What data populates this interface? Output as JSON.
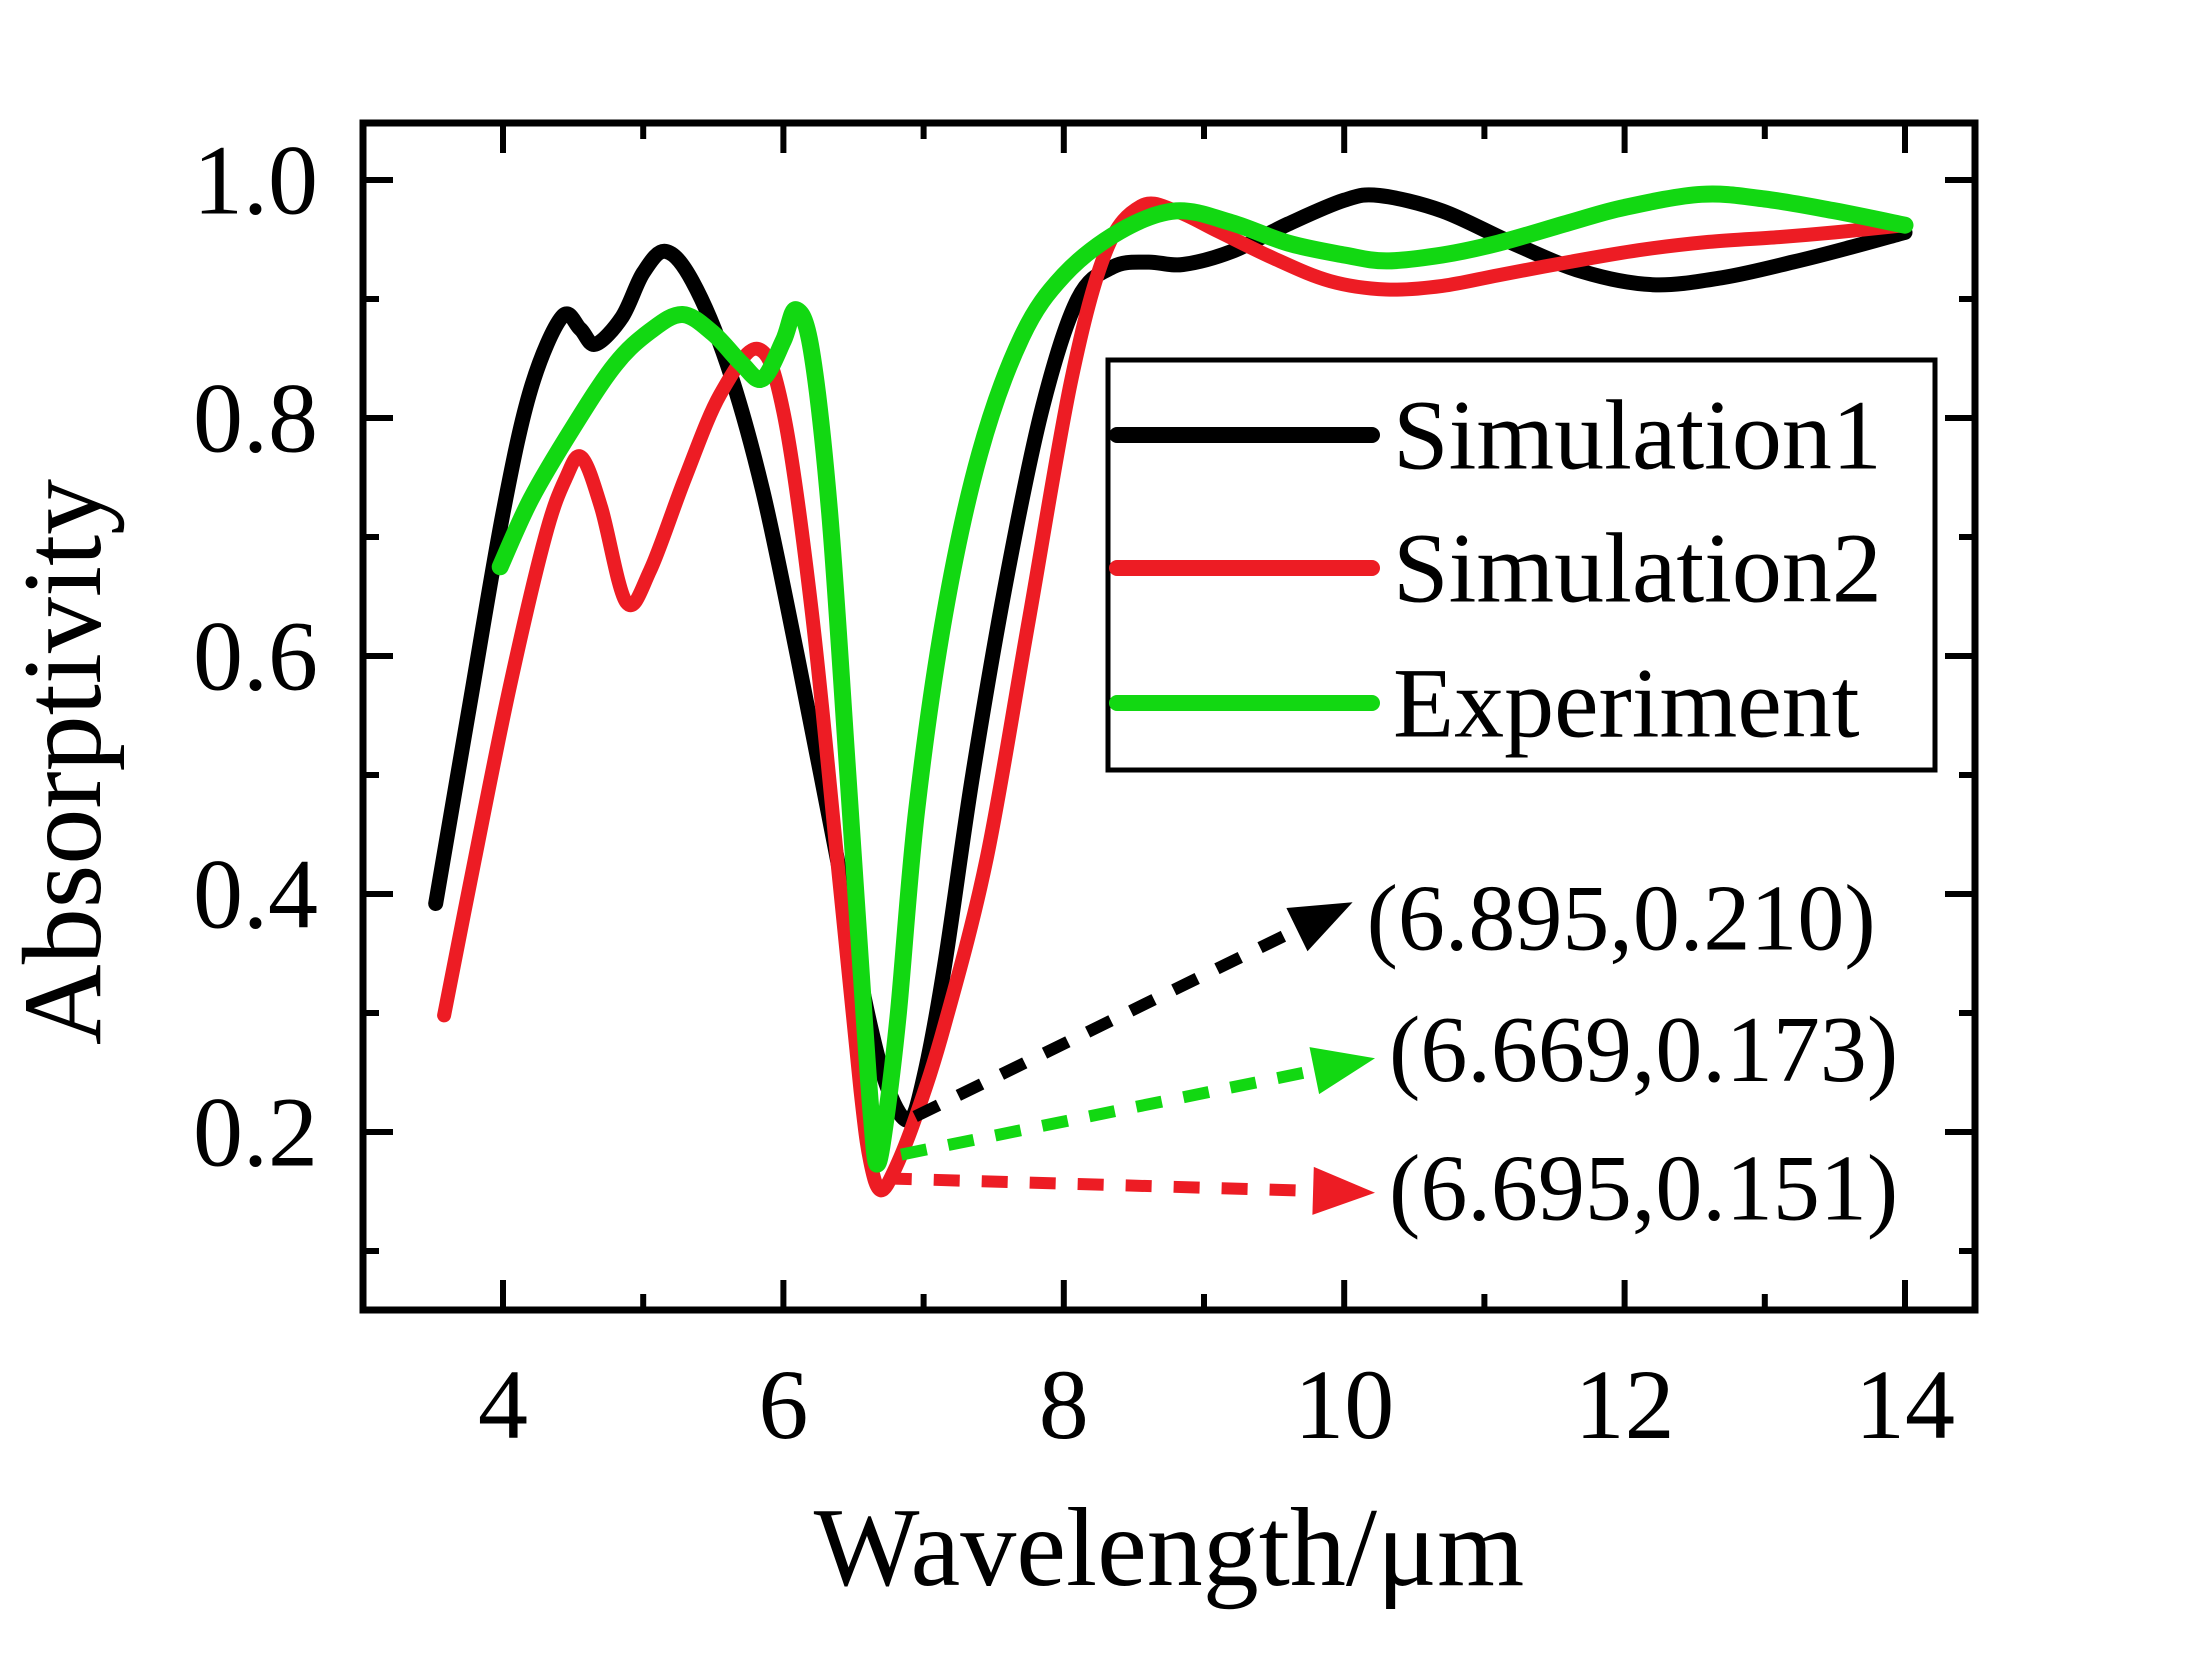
{
  "chart_data": {
    "type": "line",
    "title": "",
    "xlabel": "Wavelength/μm",
    "ylabel": "Absorptivity",
    "xlim": [
      3.0,
      14.5
    ],
    "ylim": [
      0.05,
      1.05
    ],
    "grid": false,
    "legend_position": "upper-right-inside",
    "x_ticks": [
      4,
      6,
      8,
      10,
      12,
      14
    ],
    "x_tick_labels": [
      "4",
      "6",
      "8",
      "10",
      "12",
      "14"
    ],
    "x_minor_ticks": [
      5,
      7,
      9,
      11,
      13
    ],
    "y_ticks": [
      0.2,
      0.4,
      0.6,
      0.8,
      1.0
    ],
    "y_tick_labels": [
      "0.2",
      "0.4",
      "0.6",
      "0.8",
      "1.0"
    ],
    "y_minor_ticks": [
      0.1,
      0.3,
      0.5,
      0.7,
      0.9
    ],
    "series": [
      {
        "name": "Simulation1",
        "color": "#000000",
        "min_point": [
          6.895,
          0.21
        ],
        "points": [
          [
            3.52,
            0.392
          ],
          [
            3.75,
            0.55
          ],
          [
            4.0,
            0.72
          ],
          [
            4.2,
            0.825
          ],
          [
            4.42,
            0.885
          ],
          [
            4.55,
            0.875
          ],
          [
            4.66,
            0.862
          ],
          [
            4.85,
            0.885
          ],
          [
            5.0,
            0.922
          ],
          [
            5.16,
            0.94
          ],
          [
            5.35,
            0.915
          ],
          [
            5.6,
            0.845
          ],
          [
            5.85,
            0.74
          ],
          [
            6.1,
            0.6
          ],
          [
            6.35,
            0.45
          ],
          [
            6.6,
            0.3
          ],
          [
            6.75,
            0.235
          ],
          [
            6.895,
            0.21
          ],
          [
            7.0,
            0.245
          ],
          [
            7.15,
            0.34
          ],
          [
            7.35,
            0.5
          ],
          [
            7.6,
            0.67
          ],
          [
            7.85,
            0.81
          ],
          [
            8.1,
            0.9
          ],
          [
            8.35,
            0.927
          ],
          [
            8.6,
            0.931
          ],
          [
            8.85,
            0.929
          ],
          [
            9.2,
            0.94
          ],
          [
            9.6,
            0.963
          ],
          [
            10.0,
            0.983
          ],
          [
            10.25,
            0.987
          ],
          [
            10.7,
            0.974
          ],
          [
            11.2,
            0.947
          ],
          [
            11.7,
            0.923
          ],
          [
            12.2,
            0.912
          ],
          [
            12.7,
            0.918
          ],
          [
            13.2,
            0.931
          ],
          [
            13.6,
            0.943
          ],
          [
            14.0,
            0.956
          ]
        ]
      },
      {
        "name": "Simulation2",
        "color": "#ED1C24",
        "min_point": [
          6.695,
          0.151
        ],
        "points": [
          [
            3.58,
            0.298
          ],
          [
            3.8,
            0.43
          ],
          [
            4.05,
            0.575
          ],
          [
            4.3,
            0.7
          ],
          [
            4.45,
            0.75
          ],
          [
            4.56,
            0.767
          ],
          [
            4.7,
            0.725
          ],
          [
            4.88,
            0.645
          ],
          [
            5.05,
            0.672
          ],
          [
            5.3,
            0.75
          ],
          [
            5.55,
            0.82
          ],
          [
            5.82,
            0.858
          ],
          [
            6.0,
            0.805
          ],
          [
            6.2,
            0.64
          ],
          [
            6.4,
            0.41
          ],
          [
            6.55,
            0.235
          ],
          [
            6.62,
            0.175
          ],
          [
            6.695,
            0.151
          ],
          [
            6.8,
            0.17
          ],
          [
            6.95,
            0.215
          ],
          [
            7.15,
            0.29
          ],
          [
            7.45,
            0.43
          ],
          [
            7.75,
            0.63
          ],
          [
            8.05,
            0.83
          ],
          [
            8.3,
            0.94
          ],
          [
            8.55,
            0.978
          ],
          [
            8.8,
            0.974
          ],
          [
            9.1,
            0.957
          ],
          [
            9.5,
            0.934
          ],
          [
            9.9,
            0.915
          ],
          [
            10.3,
            0.908
          ],
          [
            10.7,
            0.911
          ],
          [
            11.1,
            0.92
          ],
          [
            11.6,
            0.931
          ],
          [
            12.1,
            0.941
          ],
          [
            12.6,
            0.948
          ],
          [
            13.1,
            0.952
          ],
          [
            13.5,
            0.956
          ],
          [
            14.0,
            0.962
          ]
        ]
      },
      {
        "name": "Experiment",
        "color": "#12D812",
        "min_point": [
          6.669,
          0.173
        ],
        "points": [
          [
            3.98,
            0.675
          ],
          [
            4.2,
            0.732
          ],
          [
            4.5,
            0.792
          ],
          [
            4.8,
            0.845
          ],
          [
            5.05,
            0.873
          ],
          [
            5.28,
            0.887
          ],
          [
            5.5,
            0.871
          ],
          [
            5.7,
            0.846
          ],
          [
            5.85,
            0.833
          ],
          [
            6.0,
            0.865
          ],
          [
            6.09,
            0.891
          ],
          [
            6.2,
            0.857
          ],
          [
            6.33,
            0.72
          ],
          [
            6.46,
            0.5
          ],
          [
            6.58,
            0.29
          ],
          [
            6.63,
            0.21
          ],
          [
            6.669,
            0.173
          ],
          [
            6.73,
            0.21
          ],
          [
            6.82,
            0.3
          ],
          [
            6.95,
            0.47
          ],
          [
            7.15,
            0.635
          ],
          [
            7.4,
            0.77
          ],
          [
            7.7,
            0.868
          ],
          [
            8.0,
            0.92
          ],
          [
            8.4,
            0.957
          ],
          [
            8.8,
            0.974
          ],
          [
            9.2,
            0.964
          ],
          [
            9.6,
            0.947
          ],
          [
            10.0,
            0.937
          ],
          [
            10.3,
            0.932
          ],
          [
            10.7,
            0.937
          ],
          [
            11.1,
            0.947
          ],
          [
            11.6,
            0.964
          ],
          [
            12.0,
            0.977
          ],
          [
            12.55,
            0.988
          ],
          [
            13.0,
            0.984
          ],
          [
            13.5,
            0.974
          ],
          [
            14.0,
            0.962
          ]
        ]
      }
    ],
    "annotations": [
      {
        "label": "(6.895,0.210)",
        "series": "Simulation1",
        "color": "#000000",
        "point": [
          6.895,
          0.21
        ],
        "arrow_tail": [
          6.94,
          0.213
        ],
        "arrow_tip": [
          10.06,
          0.393
        ]
      },
      {
        "label": "(6.669,0.173)",
        "series": "Experiment",
        "color": "#12D812",
        "point": [
          6.669,
          0.173
        ],
        "arrow_tail": [
          6.84,
          0.181
        ],
        "arrow_tip": [
          10.22,
          0.262
        ]
      },
      {
        "label": "(6.695,0.151)",
        "series": "Simulation2",
        "color": "#ED1C24",
        "point": [
          6.695,
          0.151
        ],
        "arrow_tail": [
          6.73,
          0.161
        ],
        "arrow_tip": [
          10.22,
          0.149
        ]
      }
    ]
  },
  "legend": {
    "items": [
      {
        "label": "Simulation1",
        "color": "#000000"
      },
      {
        "label": "Simulation2",
        "color": "#ED1C24"
      },
      {
        "label": "Experiment",
        "color": "#12D812"
      }
    ]
  },
  "axes": {
    "x": {
      "title": "Wavelength/μm"
    },
    "y": {
      "title": "Absorptivity"
    }
  }
}
